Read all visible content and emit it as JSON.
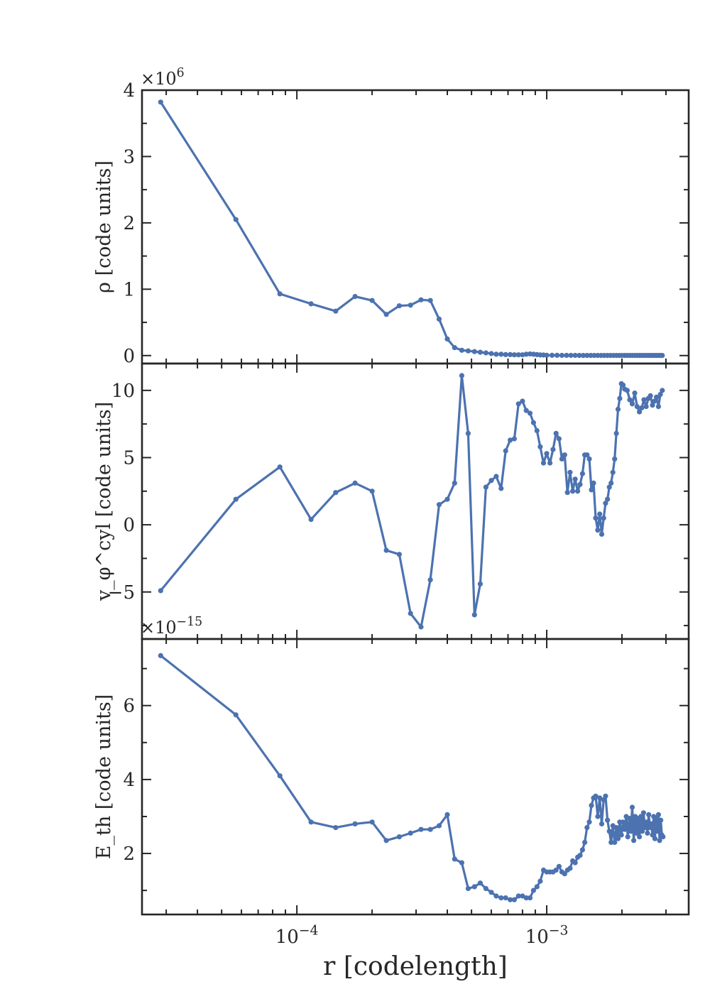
{
  "chart_data": [
    {
      "type": "line",
      "xscale": "log",
      "xlim": [
        2.4e-05,
        0.0037
      ],
      "ylim": [
        -0.12,
        4.0
      ],
      "yticks": [
        0,
        1,
        2,
        3,
        4
      ],
      "ytick_labels": [
        "0",
        "1",
        "2",
        "3",
        "4"
      ],
      "yminor": 0.5,
      "offset_text": "×10^6",
      "ylabel": "ρ [code units]",
      "color": "#4c72b0",
      "x": [
        2.85e-05,
        5.7e-05,
        8.55e-05,
        0.000114,
        0.000143,
        0.000171,
        0.0002,
        0.000228,
        0.000257,
        0.000285,
        0.000314,
        0.000342,
        0.000371,
        0.0004,
        0.000428,
        0.000457,
        0.000485,
        0.000514,
        0.000542,
        0.000571,
        0.0006,
        0.000628,
        0.000657,
        0.000685,
        0.000714,
        0.000742,
        0.000771,
        0.0008,
        0.000828,
        0.000857,
        0.000885,
        0.000914,
        0.000942,
        0.000971,
        0.001,
        0.00105,
        0.0011,
        0.00115,
        0.0012,
        0.00125,
        0.0013,
        0.00135,
        0.0014,
        0.00145,
        0.0015,
        0.00155,
        0.0016,
        0.00165,
        0.0017,
        0.00175,
        0.0018,
        0.00185,
        0.0019,
        0.00195,
        0.002,
        0.00205,
        0.0021,
        0.00215,
        0.0022,
        0.00225,
        0.0023,
        0.00235,
        0.0024,
        0.00245,
        0.0025,
        0.00255,
        0.0026,
        0.00265,
        0.0027,
        0.00275,
        0.0028,
        0.00285,
        0.0029
      ],
      "y": [
        3.82,
        2.05,
        0.93,
        0.78,
        0.67,
        0.89,
        0.83,
        0.62,
        0.75,
        0.76,
        0.84,
        0.83,
        0.55,
        0.25,
        0.12,
        0.08,
        0.07,
        0.06,
        0.05,
        0.04,
        0.03,
        0.02,
        0.02,
        0.015,
        0.015,
        0.012,
        0.012,
        0.012,
        0.02,
        0.025,
        0.02,
        0.015,
        0.01,
        0.008,
        0.005,
        0.004,
        0.004,
        0.003,
        0.003,
        0.003,
        0.003,
        0.002,
        0.002,
        0.002,
        0.002,
        0.002,
        0.002,
        0.002,
        0.002,
        0.002,
        0.002,
        0.002,
        0.002,
        0.002,
        0.002,
        0.002,
        0.002,
        0.002,
        0.002,
        0.002,
        0.002,
        0.002,
        0.002,
        0.002,
        0.002,
        0.002,
        0.002,
        0.002,
        0.002,
        0.002,
        0.002,
        0.002,
        0.002
      ]
    },
    {
      "type": "line",
      "xscale": "log",
      "xlim": [
        2.4e-05,
        0.0037
      ],
      "ylim": [
        -8.5,
        12.0
      ],
      "yticks": [
        -5,
        0,
        5,
        10
      ],
      "ytick_labels": [
        "−5",
        "0",
        "5",
        "10"
      ],
      "yminor": 2.5,
      "offset_text": "",
      "ylabel": "v_φ^cyl [code units]",
      "color": "#4c72b0",
      "x": [
        2.85e-05,
        5.7e-05,
        8.55e-05,
        0.000114,
        0.000143,
        0.000171,
        0.0002,
        0.000228,
        0.000257,
        0.000285,
        0.000314,
        0.000342,
        0.000371,
        0.0004,
        0.000428,
        0.000457,
        0.000485,
        0.000514,
        0.000542,
        0.000571,
        0.0006,
        0.000628,
        0.000657,
        0.000685,
        0.000714,
        0.000742,
        0.000771,
        0.0008,
        0.000828,
        0.000857,
        0.000885,
        0.000914,
        0.000942,
        0.000971,
        0.001,
        0.00103,
        0.00106,
        0.00109,
        0.00112,
        0.00115,
        0.00118,
        0.00121,
        0.00124,
        0.00127,
        0.0013,
        0.00133,
        0.00136,
        0.00139,
        0.00142,
        0.00145,
        0.00148,
        0.00151,
        0.00154,
        0.00157,
        0.0016,
        0.00163,
        0.00166,
        0.00169,
        0.00172,
        0.00175,
        0.00178,
        0.00181,
        0.00184,
        0.00187,
        0.0019,
        0.00193,
        0.00196,
        0.00199,
        0.00202,
        0.00205,
        0.0021,
        0.00215,
        0.0022,
        0.00225,
        0.0023,
        0.00235,
        0.0024,
        0.00245,
        0.0025,
        0.00255,
        0.0026,
        0.00265,
        0.0027,
        0.00275,
        0.0028,
        0.00285,
        0.0029
      ],
      "y": [
        -4.9,
        1.9,
        4.3,
        0.4,
        2.4,
        3.1,
        2.5,
        -1.9,
        -2.2,
        -6.6,
        -7.6,
        -4.1,
        1.5,
        1.9,
        3.1,
        11.1,
        6.8,
        -6.7,
        -4.4,
        2.8,
        3.3,
        3.6,
        2.7,
        5.5,
        6.3,
        6.4,
        9.0,
        9.2,
        8.5,
        8.3,
        7.6,
        7.0,
        5.8,
        4.6,
        5.3,
        4.6,
        5.6,
        6.8,
        6.4,
        4.9,
        5.2,
        2.4,
        3.9,
        2.5,
        3.4,
        2.5,
        3.0,
        3.8,
        5.2,
        5.2,
        4.9,
        2.6,
        3.1,
        0.5,
        -0.4,
        0.8,
        -0.7,
        0.5,
        1.6,
        1.9,
        2.8,
        3.1,
        3.9,
        4.9,
        6.8,
        8.6,
        9.4,
        10.5,
        10.4,
        10.1,
        10.0,
        9.3,
        9.0,
        9.8,
        8.8,
        8.4,
        8.7,
        9.3,
        8.8,
        9.4,
        9.6,
        8.9,
        9.2,
        9.5,
        8.8,
        9.7,
        10.0
      ]
    },
    {
      "type": "line",
      "xscale": "log",
      "xlim": [
        2.4e-05,
        0.0037
      ],
      "ylim": [
        0.35,
        7.8
      ],
      "yticks": [
        2,
        4,
        6
      ],
      "ytick_labels": [
        "2",
        "4",
        "6"
      ],
      "yminor": 1,
      "offset_text": "×10^−15",
      "ylabel": "E_th [code units]",
      "xlabel": "r [codelength]",
      "xtick_values": [
        0.0001,
        0.001
      ],
      "xtick_labels": [
        "10^−4",
        "10^−3"
      ],
      "color": "#4c72b0",
      "x": [
        2.85e-05,
        5.7e-05,
        8.55e-05,
        0.000114,
        0.000143,
        0.000171,
        0.0002,
        0.000228,
        0.000257,
        0.000285,
        0.000314,
        0.000342,
        0.000371,
        0.0004,
        0.000428,
        0.000457,
        0.000485,
        0.000514,
        0.000542,
        0.000571,
        0.0006,
        0.000628,
        0.000657,
        0.000685,
        0.000714,
        0.000742,
        0.000771,
        0.0008,
        0.000828,
        0.000857,
        0.000885,
        0.000914,
        0.000942,
        0.000971,
        0.001,
        0.00103,
        0.00106,
        0.00109,
        0.00112,
        0.00115,
        0.00118,
        0.00121,
        0.00124,
        0.00127,
        0.0013,
        0.00133,
        0.00136,
        0.00139,
        0.00142,
        0.00145,
        0.00148,
        0.00151,
        0.00154,
        0.00157,
        0.0016,
        0.00163,
        0.00166,
        0.00169,
        0.00172,
        0.00175,
        0.00178,
        0.00181,
        0.00184,
        0.00187,
        0.0019,
        0.00193,
        0.00196,
        0.00199,
        0.00202,
        0.00205,
        0.00208,
        0.00211,
        0.00214,
        0.00217,
        0.0022,
        0.00223,
        0.00226,
        0.00229,
        0.00232,
        0.00235,
        0.00238,
        0.00241,
        0.00244,
        0.00247,
        0.0025,
        0.00253,
        0.00256,
        0.00259,
        0.00262,
        0.00265,
        0.00268,
        0.00271,
        0.00274,
        0.00277,
        0.0028,
        0.00283,
        0.00286,
        0.00289,
        0.00292
      ],
      "y": [
        7.35,
        5.75,
        4.1,
        2.85,
        2.7,
        2.8,
        2.85,
        2.35,
        2.45,
        2.55,
        2.65,
        2.65,
        2.75,
        3.05,
        1.85,
        1.75,
        1.05,
        1.1,
        1.2,
        1.05,
        0.95,
        0.85,
        0.8,
        0.8,
        0.75,
        0.75,
        0.85,
        0.85,
        0.8,
        0.8,
        1.0,
        1.1,
        1.25,
        1.55,
        1.5,
        1.5,
        1.5,
        1.55,
        1.65,
        1.5,
        1.45,
        1.55,
        1.6,
        1.8,
        1.75,
        1.9,
        1.95,
        2.1,
        2.3,
        2.7,
        2.85,
        3.3,
        3.5,
        3.55,
        3.0,
        3.5,
        2.8,
        3.45,
        3.55,
        2.9,
        2.6,
        2.3,
        2.75,
        2.3,
        2.7,
        2.4,
        2.85,
        2.5,
        2.85,
        2.65,
        3.0,
        2.45,
        2.95,
        2.6,
        3.25,
        2.35,
        3.0,
        2.55,
        2.95,
        2.45,
        3.0,
        2.6,
        3.1,
        2.7,
        2.85,
        2.55,
        3.05,
        2.7,
        2.8,
        2.5,
        3.0,
        2.4,
        2.95,
        2.6,
        3.05,
        2.35,
        2.9,
        2.5,
        2.45
      ]
    }
  ]
}
